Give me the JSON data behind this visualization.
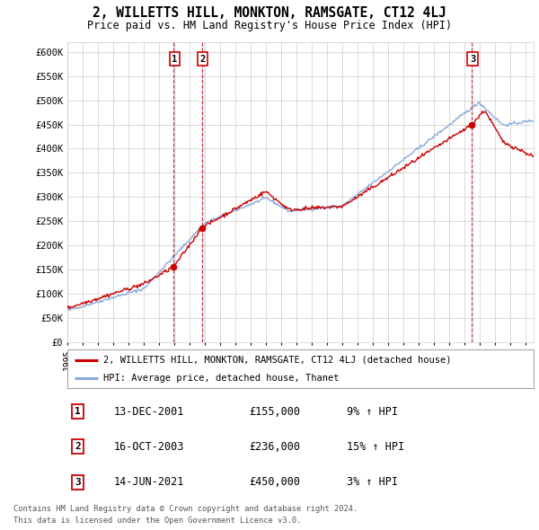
{
  "title": "2, WILLETTS HILL, MONKTON, RAMSGATE, CT12 4LJ",
  "subtitle": "Price paid vs. HM Land Registry's House Price Index (HPI)",
  "ylim": [
    0,
    620000
  ],
  "yticks": [
    0,
    50000,
    100000,
    150000,
    200000,
    250000,
    300000,
    350000,
    400000,
    450000,
    500000,
    550000,
    600000
  ],
  "ytick_labels": [
    "£0",
    "£50K",
    "£100K",
    "£150K",
    "£200K",
    "£250K",
    "£300K",
    "£350K",
    "£400K",
    "£450K",
    "£500K",
    "£550K",
    "£600K"
  ],
  "background_color": "#ffffff",
  "plot_bg_color": "#ffffff",
  "grid_color": "#cccccc",
  "sale_color": "#cc0000",
  "hpi_color": "#88aadd",
  "transactions": [
    {
      "label": "1",
      "date": "13-DEC-2001",
      "price": 155000,
      "pct": "9%",
      "x_year": 2001.95
    },
    {
      "label": "2",
      "date": "16-OCT-2003",
      "price": 236000,
      "pct": "15%",
      "x_year": 2003.79
    },
    {
      "label": "3",
      "date": "14-JUN-2021",
      "price": 450000,
      "pct": "3%",
      "x_year": 2021.45
    }
  ],
  "legend_sale_label": "2, WILLETTS HILL, MONKTON, RAMSGATE, CT12 4LJ (detached house)",
  "legend_hpi_label": "HPI: Average price, detached house, Thanet",
  "footer_line1": "Contains HM Land Registry data © Crown copyright and database right 2024.",
  "footer_line2": "This data is licensed under the Open Government Licence v3.0.",
  "xlim_start": 1995.0,
  "xlim_end": 2025.5
}
